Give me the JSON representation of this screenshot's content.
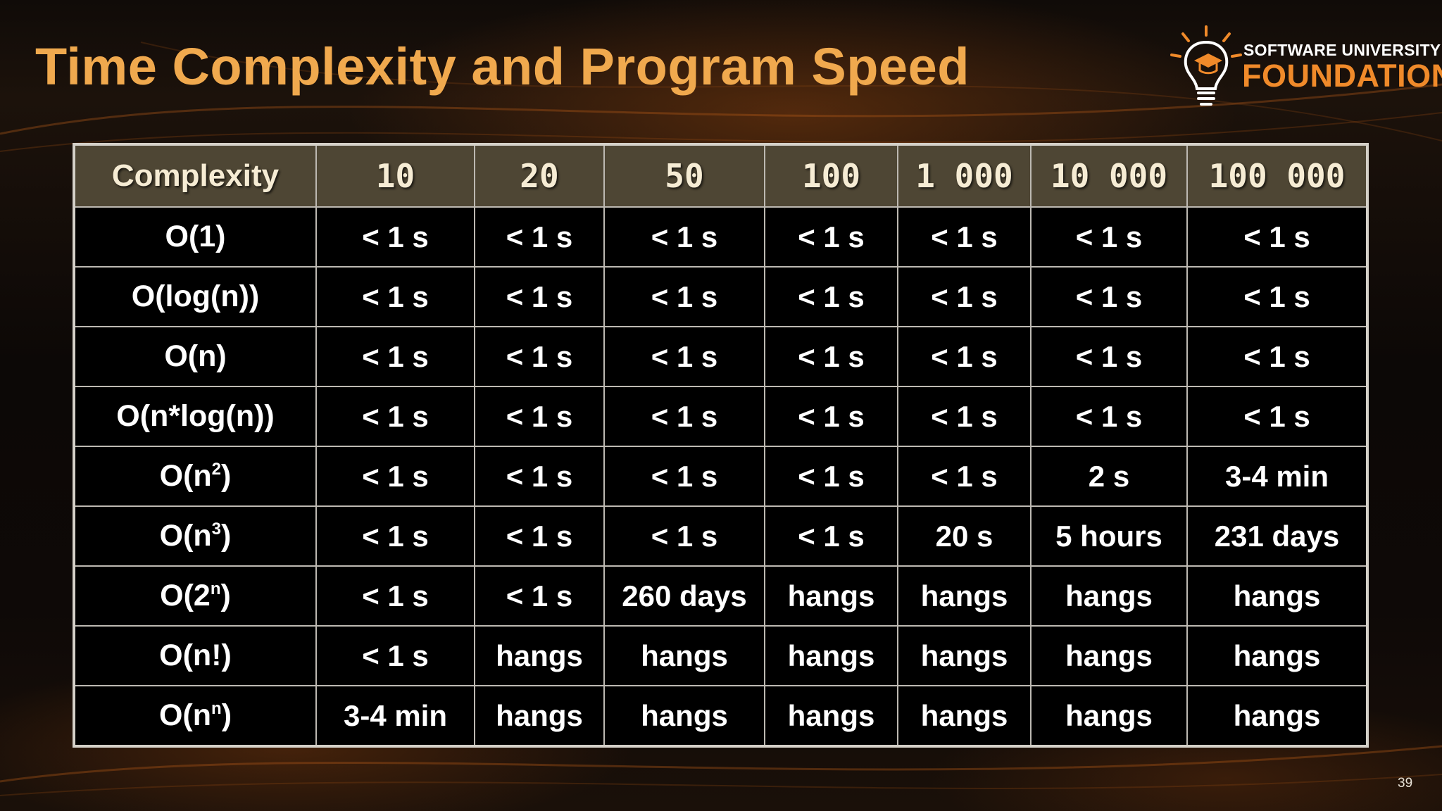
{
  "slide": {
    "title": "Time Complexity and Program Speed",
    "page_number": "39"
  },
  "logo": {
    "line1": "SOFTWARE UNIVERSITY",
    "line2": "FOUNDATION",
    "icon": "lightbulb-graduation-cap-icon",
    "accent_color": "#f08a2a"
  },
  "colors": {
    "title": "#f0a94e",
    "header_bg": "#4e4634",
    "cell_bg": "#000000",
    "border": "#d4d0c8"
  },
  "table": {
    "headers": [
      "Complexity",
      "10",
      "20",
      "50",
      "100",
      "1 000",
      "10 000",
      "100 000"
    ],
    "rows": [
      {
        "base": "O(1)",
        "sup": "",
        "tail": "",
        "values": [
          "< 1 s",
          "< 1 s",
          "< 1 s",
          "< 1 s",
          "< 1 s",
          "< 1 s",
          "< 1 s"
        ]
      },
      {
        "base": "O(log(n))",
        "sup": "",
        "tail": "",
        "values": [
          "< 1 s",
          "< 1 s",
          "< 1 s",
          "< 1 s",
          "< 1 s",
          "< 1 s",
          "< 1 s"
        ]
      },
      {
        "base": "O(n)",
        "sup": "",
        "tail": "",
        "values": [
          "< 1 s",
          "< 1 s",
          "< 1 s",
          "< 1 s",
          "< 1 s",
          "< 1 s",
          "< 1 s"
        ]
      },
      {
        "base": "O(n*log(n))",
        "sup": "",
        "tail": "",
        "values": [
          "< 1 s",
          "< 1 s",
          "< 1 s",
          "< 1 s",
          "< 1 s",
          "< 1 s",
          "< 1 s"
        ]
      },
      {
        "base": "O(n",
        "sup": "2",
        "tail": ")",
        "values": [
          "< 1 s",
          "< 1 s",
          "< 1 s",
          "< 1 s",
          "< 1 s",
          "2 s",
          "3-4 min"
        ]
      },
      {
        "base": "O(n",
        "sup": "3",
        "tail": ")",
        "values": [
          "< 1 s",
          "< 1 s",
          "< 1 s",
          "< 1 s",
          "20 s",
          "5 hours",
          "231 days"
        ]
      },
      {
        "base": "O(2",
        "sup": "n",
        "tail": ")",
        "values": [
          "< 1 s",
          "< 1 s",
          "260 days",
          "hangs",
          "hangs",
          "hangs",
          "hangs"
        ]
      },
      {
        "base": "O(n!)",
        "sup": "",
        "tail": "",
        "values": [
          "< 1 s",
          "hangs",
          "hangs",
          "hangs",
          "hangs",
          "hangs",
          "hangs"
        ]
      },
      {
        "base": "O(n",
        "sup": "n",
        "tail": ")",
        "values": [
          "3-4 min",
          "hangs",
          "hangs",
          "hangs",
          "hangs",
          "hangs",
          "hangs"
        ]
      }
    ]
  }
}
